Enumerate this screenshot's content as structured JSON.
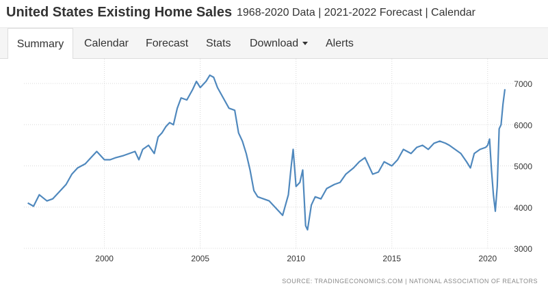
{
  "header": {
    "title": "United States Existing Home Sales",
    "subtitle": "1968-2020 Data | 2021-2022 Forecast | Calendar"
  },
  "tabs": [
    {
      "label": "Summary",
      "active": true
    },
    {
      "label": "Calendar",
      "active": false
    },
    {
      "label": "Forecast",
      "active": false
    },
    {
      "label": "Stats",
      "active": false
    },
    {
      "label": "Download",
      "active": false,
      "dropdown": true
    },
    {
      "label": "Alerts",
      "active": false
    }
  ],
  "colors": {
    "line": "#4f88bd",
    "grid": "#d8d8d8",
    "text": "#333333",
    "source_text": "#888888"
  },
  "chart_data": {
    "type": "line",
    "title": "",
    "xlabel": "",
    "ylabel": "",
    "xlim": [
      1995.8,
      2021.4
    ],
    "ylim": [
      3000,
      7000
    ],
    "x_ticks": [
      2000,
      2005,
      2010,
      2015,
      2020
    ],
    "y_ticks": [
      3000,
      4000,
      5000,
      6000,
      7000
    ],
    "x_grid": true,
    "y_grid": true,
    "y_axis_position": "right",
    "source": "SOURCE: TRADINGECONOMICS.COM | NATIONAL ASSOCIATION OF REALTORS",
    "series": [
      {
        "x": [
          1996.0,
          1996.3,
          1996.6,
          1997.0,
          1997.3,
          1997.6,
          1998.0,
          1998.3,
          1998.6,
          1999.0,
          1999.3,
          1999.6,
          2000.0,
          2000.3,
          2000.6,
          2001.0,
          2001.3,
          2001.6,
          2001.8,
          2002.0,
          2002.3,
          2002.6,
          2002.8,
          2003.0,
          2003.2,
          2003.4,
          2003.6,
          2003.8,
          2004.0,
          2004.3,
          2004.6,
          2004.8,
          2005.0,
          2005.3,
          2005.5,
          2005.7,
          2005.9,
          2006.2,
          2006.5,
          2006.8,
          2007.0,
          2007.2,
          2007.4,
          2007.6,
          2007.8,
          2008.0,
          2008.3,
          2008.6,
          2008.8,
          2009.0,
          2009.3,
          2009.6,
          2009.75,
          2009.85,
          2010.0,
          2010.2,
          2010.35,
          2010.5,
          2010.6,
          2010.8,
          2011.0,
          2011.3,
          2011.6,
          2012.0,
          2012.3,
          2012.6,
          2013.0,
          2013.3,
          2013.6,
          2014.0,
          2014.3,
          2014.6,
          2015.0,
          2015.3,
          2015.6,
          2015.8,
          2016.0,
          2016.3,
          2016.6,
          2016.9,
          2017.2,
          2017.5,
          2017.8,
          2018.0,
          2018.3,
          2018.6,
          2018.9,
          2019.1,
          2019.3,
          2019.6,
          2019.9,
          2020.0,
          2020.1,
          2020.2,
          2020.3,
          2020.4,
          2020.5,
          2020.6,
          2020.7,
          2020.8,
          2020.9
        ],
        "y": [
          4100,
          4020,
          4300,
          4150,
          4200,
          4350,
          4550,
          4800,
          4950,
          5050,
          5200,
          5350,
          5150,
          5150,
          5200,
          5250,
          5300,
          5350,
          5150,
          5400,
          5500,
          5300,
          5700,
          5800,
          5950,
          6050,
          6000,
          6400,
          6650,
          6600,
          6850,
          7050,
          6900,
          7050,
          7200,
          7150,
          6900,
          6650,
          6400,
          6350,
          5800,
          5600,
          5300,
          4900,
          4400,
          4250,
          4200,
          4150,
          4050,
          3950,
          3800,
          4300,
          5000,
          5400,
          4500,
          4600,
          4900,
          3550,
          3450,
          4050,
          4250,
          4200,
          4450,
          4550,
          4600,
          4800,
          4950,
          5100,
          5200,
          4800,
          4850,
          5100,
          5000,
          5150,
          5400,
          5350,
          5300,
          5450,
          5500,
          5400,
          5550,
          5600,
          5550,
          5500,
          5400,
          5300,
          5100,
          4950,
          5300,
          5400,
          5450,
          5500,
          5650,
          4900,
          4300,
          3900,
          4500,
          5900,
          6000,
          6500,
          6860
        ]
      }
    ]
  }
}
